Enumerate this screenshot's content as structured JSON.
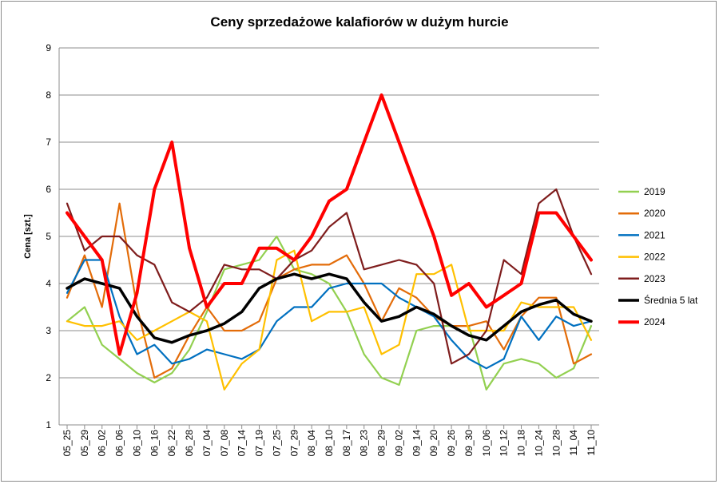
{
  "chart_data": {
    "type": "line",
    "title": "Ceny sprzedażowe kalafiorów w dużym hurcie",
    "ylabel": "Cena [szt.]",
    "xlabel": "",
    "ylim": [
      1,
      9
    ],
    "yticks": [
      1,
      2,
      3,
      4,
      5,
      6,
      7,
      8,
      9
    ],
    "grid": true,
    "legend_position": "right",
    "x": [
      "05_25",
      "05_29",
      "06_02",
      "06_06",
      "06_10",
      "06_16",
      "06_22",
      "06_28",
      "07_04",
      "07_08",
      "07_14",
      "07_19",
      "07_25",
      "07_29",
      "08_04",
      "08_10",
      "08_17",
      "08_23",
      "08_29",
      "09_02",
      "09_14",
      "09_20",
      "09_26",
      "09_30",
      "10_06",
      "10_12",
      "10_18",
      "10_24",
      "10_28",
      "11_04",
      "11_10"
    ],
    "series": [
      {
        "name": "2019",
        "color": "#92d050",
        "values": [
          3.2,
          3.5,
          2.7,
          2.4,
          2.1,
          1.9,
          2.1,
          2.6,
          3.4,
          4.3,
          4.4,
          4.5,
          5.0,
          4.3,
          4.2,
          4.0,
          3.4,
          2.5,
          2.0,
          1.85,
          3.0,
          3.1,
          3.1,
          3.1,
          1.75,
          2.3,
          2.4,
          2.3,
          2.0,
          2.2,
          3.1
        ]
      },
      {
        "name": "2020",
        "color": "#e36c09",
        "values": [
          3.7,
          4.6,
          3.5,
          5.7,
          3.5,
          2.0,
          2.2,
          2.9,
          3.5,
          3.0,
          3.0,
          3.2,
          4.1,
          4.3,
          4.4,
          4.4,
          4.6,
          4.0,
          3.2,
          3.9,
          3.7,
          3.3,
          3.1,
          3.1,
          3.2,
          2.6,
          3.3,
          3.7,
          3.7,
          2.3,
          2.5
        ]
      },
      {
        "name": "2021",
        "color": "#0070c0",
        "values": [
          3.8,
          4.5,
          4.5,
          3.3,
          2.5,
          2.7,
          2.3,
          2.4,
          2.6,
          2.5,
          2.4,
          2.6,
          3.2,
          3.5,
          3.5,
          3.9,
          4.0,
          4.0,
          4.0,
          3.7,
          3.5,
          3.3,
          2.8,
          2.4,
          2.2,
          2.4,
          3.3,
          2.8,
          3.3,
          3.1,
          3.2
        ]
      },
      {
        "name": "2022",
        "color": "#ffc000",
        "values": [
          3.2,
          3.1,
          3.1,
          3.2,
          2.8,
          3.0,
          3.2,
          3.4,
          3.2,
          1.75,
          2.3,
          2.6,
          4.5,
          4.7,
          3.2,
          3.4,
          3.4,
          3.5,
          2.5,
          2.7,
          4.2,
          4.2,
          4.4,
          3.0,
          3.0,
          3.0,
          3.6,
          3.5,
          3.5,
          3.5,
          2.8
        ]
      },
      {
        "name": "2023",
        "color": "#7f1d1d",
        "values": [
          5.7,
          4.7,
          5.0,
          5.0,
          4.6,
          4.4,
          3.6,
          3.4,
          3.7,
          4.4,
          4.3,
          4.3,
          4.1,
          4.5,
          4.7,
          5.2,
          5.5,
          4.3,
          4.4,
          4.5,
          4.4,
          4.0,
          2.3,
          2.5,
          3.0,
          4.5,
          4.2,
          5.7,
          6.0,
          5.0,
          4.2
        ]
      },
      {
        "name": "Średnia 5 lat",
        "color": "#000000",
        "values": [
          3.9,
          4.1,
          4.0,
          3.9,
          3.3,
          2.85,
          2.75,
          2.9,
          3.0,
          3.15,
          3.4,
          3.9,
          4.1,
          4.2,
          4.1,
          4.2,
          4.1,
          3.6,
          3.2,
          3.3,
          3.5,
          3.35,
          3.1,
          2.9,
          2.8,
          3.1,
          3.4,
          3.55,
          3.65,
          3.35,
          3.2
        ]
      },
      {
        "name": "2024",
        "color": "#ff0000",
        "values": [
          5.5,
          5.0,
          4.5,
          2.5,
          3.8,
          6.0,
          7.0,
          4.75,
          3.5,
          4.0,
          4.0,
          4.75,
          4.75,
          4.5,
          5.0,
          5.75,
          6.0,
          7.0,
          8.0,
          7.0,
          6.0,
          5.0,
          3.75,
          4.0,
          3.5,
          3.75,
          4.0,
          5.5,
          5.5,
          5.0,
          4.5
        ]
      }
    ]
  }
}
